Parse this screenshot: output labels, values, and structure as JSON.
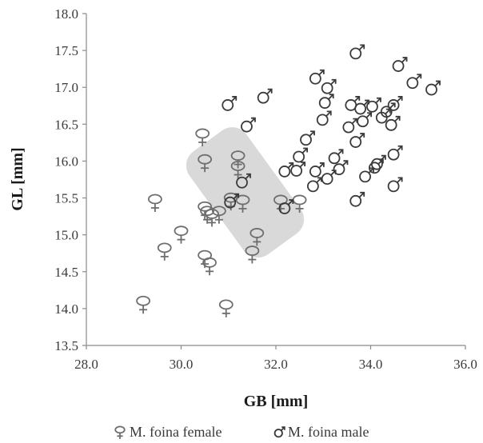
{
  "chart_data": {
    "type": "scatter",
    "xlabel": "GB [mm]",
    "ylabel": "GL [mm]",
    "xlim": [
      28.0,
      36.0
    ],
    "ylim": [
      13.5,
      18.0
    ],
    "xticks": [
      "28.0",
      "30.0",
      "32.0",
      "34.0",
      "36.0"
    ],
    "yticks": [
      "13.5",
      "14.0",
      "14.5",
      "15.0",
      "15.5",
      "16.0",
      "16.5",
      "17.0",
      "17.5",
      "18.0"
    ],
    "grid": false,
    "legend_position": "bottom",
    "highlight_band": {
      "from": [
        30.7,
        16.15
      ],
      "to": [
        32.0,
        15.0
      ],
      "color": "#d9d9d9"
    },
    "series": [
      {
        "name": "M. foina female",
        "marker": "female-symbol",
        "color": "#6e6e6e",
        "points": [
          [
            29.2,
            14.05
          ],
          [
            29.45,
            15.43
          ],
          [
            29.65,
            14.77
          ],
          [
            30.0,
            15.0
          ],
          [
            30.45,
            16.32
          ],
          [
            30.5,
            15.97
          ],
          [
            30.5,
            15.33
          ],
          [
            30.5,
            14.67
          ],
          [
            30.55,
            15.27
          ],
          [
            30.6,
            14.57
          ],
          [
            30.65,
            15.23
          ],
          [
            30.8,
            15.27
          ],
          [
            30.95,
            14.0
          ],
          [
            31.05,
            15.45
          ],
          [
            31.2,
            16.02
          ],
          [
            31.2,
            15.88
          ],
          [
            31.3,
            15.42
          ],
          [
            31.5,
            14.73
          ],
          [
            31.6,
            14.97
          ],
          [
            32.1,
            15.42
          ],
          [
            32.5,
            15.42
          ]
        ]
      },
      {
        "name": "M. foina male",
        "marker": "male-symbol",
        "color": "#3a3a3a",
        "points": [
          [
            31.0,
            16.77
          ],
          [
            31.05,
            15.45
          ],
          [
            31.4,
            16.48
          ],
          [
            31.3,
            15.72
          ],
          [
            31.75,
            16.87
          ],
          [
            32.2,
            15.37
          ],
          [
            32.2,
            15.87
          ],
          [
            32.45,
            15.88
          ],
          [
            32.5,
            16.07
          ],
          [
            32.65,
            16.3
          ],
          [
            32.8,
            15.67
          ],
          [
            32.85,
            15.87
          ],
          [
            32.85,
            17.13
          ],
          [
            33.0,
            16.57
          ],
          [
            33.05,
            16.8
          ],
          [
            33.1,
            15.77
          ],
          [
            33.1,
            17.0
          ],
          [
            33.25,
            16.05
          ],
          [
            33.35,
            15.9
          ],
          [
            33.55,
            16.47
          ],
          [
            33.6,
            16.77
          ],
          [
            33.7,
            15.47
          ],
          [
            33.7,
            16.27
          ],
          [
            33.7,
            17.47
          ],
          [
            33.8,
            16.72
          ],
          [
            33.85,
            16.55
          ],
          [
            33.9,
            15.8
          ],
          [
            34.05,
            16.75
          ],
          [
            34.1,
            15.92
          ],
          [
            34.15,
            15.97
          ],
          [
            34.25,
            16.6
          ],
          [
            34.35,
            16.68
          ],
          [
            34.45,
            16.5
          ],
          [
            34.5,
            16.77
          ],
          [
            34.5,
            16.1
          ],
          [
            34.5,
            15.67
          ],
          [
            34.6,
            17.3
          ],
          [
            34.9,
            17.07
          ],
          [
            35.3,
            16.98
          ]
        ]
      }
    ]
  }
}
